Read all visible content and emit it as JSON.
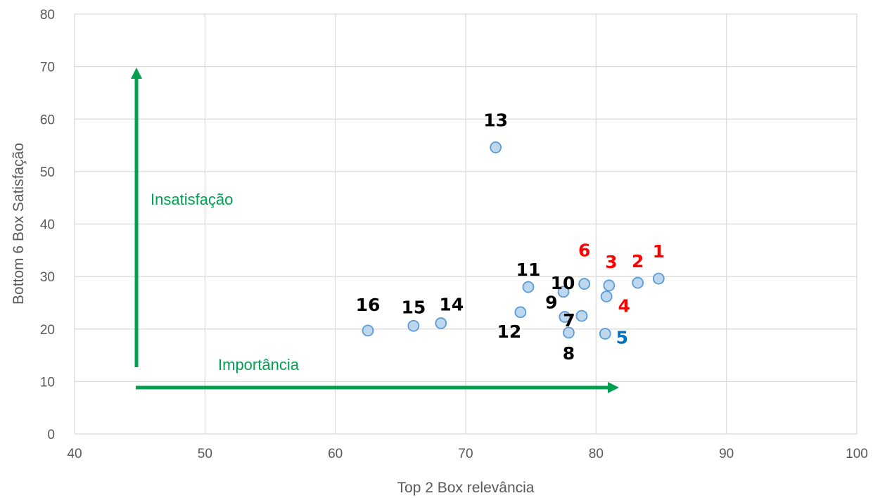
{
  "chart_data": {
    "type": "scatter",
    "title": "",
    "xlabel": "Top 2 Box relevância",
    "ylabel": "Bottom 6 Box Satisfação",
    "xlim": [
      40,
      100
    ],
    "ylim": [
      0,
      80
    ],
    "x_ticks": [
      40,
      50,
      60,
      70,
      80,
      90,
      100
    ],
    "y_ticks": [
      0,
      10,
      20,
      30,
      40,
      50,
      60,
      70,
      80
    ],
    "grid": true,
    "legend": "none",
    "marker_fill": "#BDD7EE",
    "marker_edge": "#5B9BD5",
    "points": [
      {
        "label": "1",
        "x": 84.8,
        "y": 29.6,
        "color": "#FF0000"
      },
      {
        "label": "2",
        "x": 83.2,
        "y": 28.8,
        "color": "#FF0000"
      },
      {
        "label": "3",
        "x": 81.0,
        "y": 28.3,
        "color": "#FF0000"
      },
      {
        "label": "4",
        "x": 80.8,
        "y": 26.2,
        "color": "#FF0000"
      },
      {
        "label": "5",
        "x": 80.7,
        "y": 19.1,
        "color": "#0070C0"
      },
      {
        "label": "6",
        "x": 79.1,
        "y": 28.6,
        "color": "#FF0000"
      },
      {
        "label": "7",
        "x": 78.9,
        "y": 22.5,
        "color": "#000000"
      },
      {
        "label": "8",
        "x": 77.9,
        "y": 19.3,
        "color": "#000000"
      },
      {
        "label": "9",
        "x": 77.6,
        "y": 22.3,
        "color": "#000000"
      },
      {
        "label": "10",
        "x": 77.5,
        "y": 27.1,
        "color": "#000000"
      },
      {
        "label": "11",
        "x": 74.8,
        "y": 28.0,
        "color": "#000000"
      },
      {
        "label": "12",
        "x": 74.2,
        "y": 23.2,
        "color": "#000000"
      },
      {
        "label": "13",
        "x": 72.3,
        "y": 54.6,
        "color": "#000000"
      },
      {
        "label": "14",
        "x": 68.1,
        "y": 21.1,
        "color": "#000000"
      },
      {
        "label": "15",
        "x": 66.0,
        "y": 20.6,
        "color": "#000000"
      },
      {
        "label": "16",
        "x": 62.5,
        "y": 19.7,
        "color": "#000000"
      }
    ],
    "annotations": [
      {
        "text": "Insatisfação",
        "color": "#00A050"
      },
      {
        "text": "Importância",
        "color": "#00A050"
      }
    ],
    "arrow_color": "#00A050"
  }
}
